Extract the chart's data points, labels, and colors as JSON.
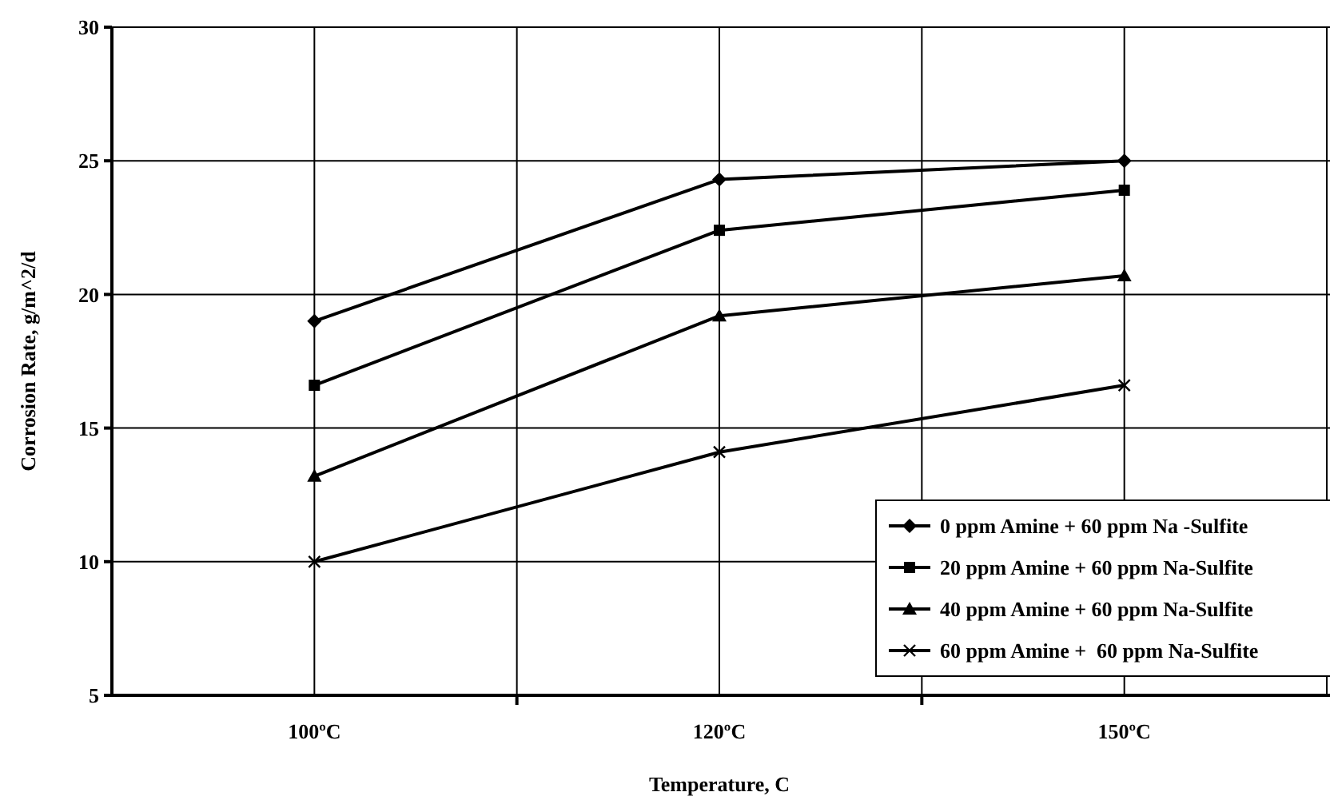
{
  "chart_data": {
    "type": "line",
    "xlabel": "Temperature, C",
    "ylabel": "Corrosion Rate, g/m^2/d",
    "categories": [
      "100ºC",
      "120ºC",
      "150ºC"
    ],
    "series": [
      {
        "name": "0 ppm Amine + 60 ppm Na -Sulfite",
        "color": "#000000",
        "marker": "diamond",
        "values": [
          19.0,
          24.3,
          25.0
        ]
      },
      {
        "name": "20 ppm Amine + 60 ppm Na-Sulfite",
        "color": "#000000",
        "marker": "square",
        "values": [
          16.6,
          22.4,
          23.9
        ]
      },
      {
        "name": "40 ppm Amine + 60 ppm Na-Sulfite",
        "color": "#000000",
        "marker": "triangle",
        "values": [
          13.2,
          19.2,
          20.7
        ]
      },
      {
        "name": "60 ppm Amine +  60 ppm Na-Sulfite",
        "color": "#000000",
        "marker": "cross",
        "values": [
          10.0,
          14.1,
          16.6
        ]
      }
    ],
    "ylim": [
      5,
      30
    ],
    "yticks": [
      5,
      10,
      15,
      20,
      25,
      30
    ],
    "grid": true,
    "legend": "bottom right",
    "line_style": "solid"
  }
}
